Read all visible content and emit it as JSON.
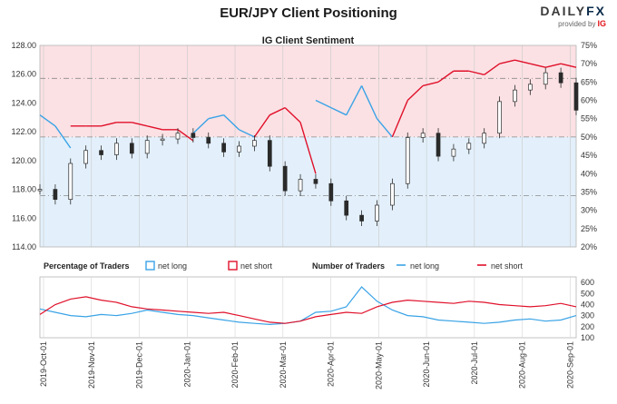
{
  "header": {
    "title": "EUR/JPY Client Positioning",
    "brand_prefix": "DAILY",
    "brand_suffix": "FX",
    "brand_sub": "provided by",
    "brand_ig": "IG"
  },
  "colors": {
    "net_long": "#39a3e6",
    "net_short": "#e0102a",
    "price": "#2a2a2a",
    "long_zone": "#fbe1e4",
    "short_zone": "#e3f0fb"
  },
  "chart_data": [
    {
      "type": "line",
      "title": "IG Client Sentiment",
      "x": [
        "2019-10-01",
        "2019-10-11",
        "2019-10-21",
        "2019-11-01",
        "2019-11-11",
        "2019-11-21",
        "2019-12-01",
        "2019-12-11",
        "2019-12-21",
        "2020-01-01",
        "2020-01-11",
        "2020-01-21",
        "2020-02-01",
        "2020-02-11",
        "2020-02-21",
        "2020-03-01",
        "2020-03-11",
        "2020-03-21",
        "2020-04-01",
        "2020-04-11",
        "2020-04-21",
        "2020-05-01",
        "2020-05-11",
        "2020-05-21",
        "2020-06-01",
        "2020-06-11",
        "2020-06-21",
        "2020-07-01",
        "2020-07-11",
        "2020-07-21",
        "2020-08-01",
        "2020-08-11",
        "2020-08-21",
        "2020-09-01",
        "2020-09-11",
        "2020-09-21"
      ],
      "series": [
        {
          "name": "price",
          "axis": "left",
          "values": [
            118.0,
            117.3,
            119.8,
            120.7,
            120.4,
            121.2,
            120.5,
            121.4,
            121.5,
            121.9,
            121.6,
            121.2,
            120.6,
            121.0,
            121.4,
            119.6,
            117.9,
            118.7,
            118.4,
            117.2,
            116.2,
            115.8,
            116.9,
            118.4,
            121.6,
            121.9,
            120.3,
            120.8,
            121.2,
            121.9,
            124.1,
            124.9,
            125.3,
            126.1,
            125.4,
            123.5
          ]
        },
        {
          "name": "net long",
          "axis": "right",
          "values": [
            56,
            53,
            47,
            47,
            47,
            46,
            46,
            47,
            48,
            48,
            51,
            55,
            56,
            52,
            50,
            44,
            42,
            46,
            60,
            58,
            56,
            64,
            55,
            50,
            40,
            36,
            35,
            32,
            32,
            33,
            30,
            29,
            30,
            31,
            30,
            31
          ]
        },
        {
          "name": "net short",
          "axis": "right",
          "values": [
            44,
            47,
            53,
            53,
            53,
            54,
            54,
            53,
            52,
            52,
            49,
            45,
            44,
            48,
            50,
            56,
            58,
            54,
            40,
            42,
            44,
            36,
            45,
            50,
            60,
            64,
            65,
            68,
            68,
            67,
            70,
            71,
            70,
            69,
            70,
            69
          ]
        }
      ],
      "left_axis": {
        "ticks": [
          "114.00",
          "116.00",
          "118.00",
          "120.00",
          "122.00",
          "124.00",
          "126.00",
          "128.00"
        ],
        "ylim": [
          114,
          128
        ]
      },
      "right_axis": {
        "ticks": [
          "20%",
          "25%",
          "30%",
          "35%",
          "40%",
          "45%",
          "50%",
          "55%",
          "60%",
          "65%",
          "70%",
          "75%"
        ],
        "ylim": [
          20,
          75
        ]
      },
      "reference_lines_pct": [
        50,
        66,
        34
      ]
    },
    {
      "type": "line",
      "legend": {
        "group1_label": "Percentage of Traders",
        "group2_label": "Number of Traders",
        "net_long": "net long",
        "net_short": "net short"
      },
      "x_ticks": [
        "2019-Oct-01",
        "2019-Nov-01",
        "2019-Dec-01",
        "2020-Jan-01",
        "2020-Feb-01",
        "2020-Mar-01",
        "2020-Apr-01",
        "2020-May-01",
        "2020-Jun-01",
        "2020-Jul-01",
        "2020-Aug-01",
        "2020-Sep-01"
      ],
      "series": [
        {
          "name": "net long",
          "values": [
            360,
            330,
            300,
            290,
            310,
            300,
            320,
            350,
            330,
            310,
            300,
            280,
            260,
            240,
            230,
            220,
            230,
            250,
            330,
            340,
            380,
            560,
            430,
            350,
            300,
            290,
            260,
            250,
            240,
            230,
            240,
            260,
            270,
            250,
            260,
            300
          ]
        },
        {
          "name": "net short",
          "values": [
            310,
            400,
            450,
            470,
            440,
            420,
            380,
            360,
            350,
            340,
            330,
            320,
            330,
            300,
            270,
            240,
            230,
            250,
            290,
            310,
            330,
            320,
            380,
            420,
            440,
            430,
            420,
            410,
            430,
            420,
            400,
            390,
            380,
            390,
            410,
            380
          ]
        }
      ],
      "right_axis": {
        "ticks": [
          "100",
          "200",
          "300",
          "400",
          "500",
          "600"
        ],
        "ylim": [
          100,
          650
        ]
      }
    }
  ]
}
